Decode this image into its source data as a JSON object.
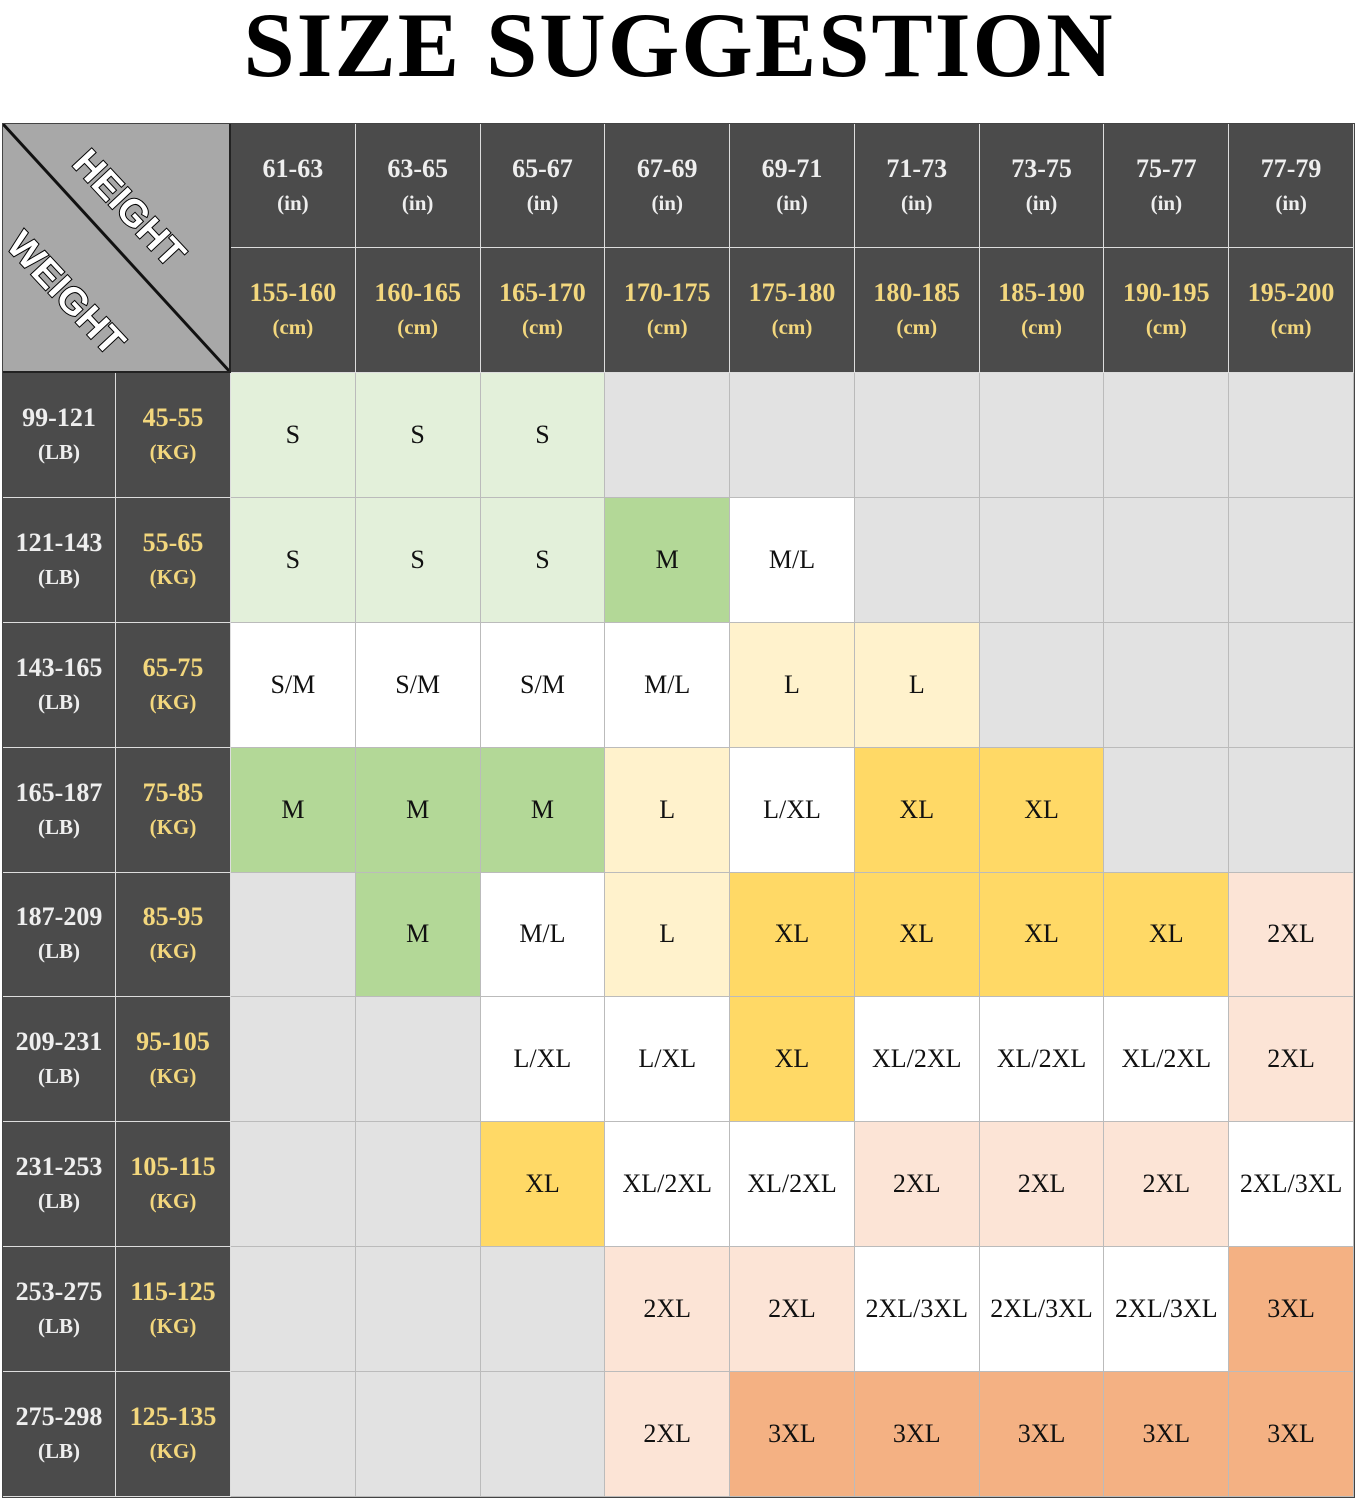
{
  "title": "SIZE SUGGESTION",
  "corner": {
    "height_label": "HEIGHT",
    "weight_label": "WEIGHT"
  },
  "colors": {
    "header": "#4b4b4b",
    "corner": "#a8a8a8",
    "gold_text": "#f3d77d",
    "lg": "#e3f0da",
    "g": "#b3d897",
    "gr": "#e2e2e2",
    "w": "#ffffff",
    "ly": "#fff2cc",
    "y": "#ffd966",
    "p": "#fce4d6",
    "o": "#f4b183"
  },
  "height_in": [
    "61-63",
    "63-65",
    "65-67",
    "67-69",
    "69-71",
    "71-73",
    "73-75",
    "75-77",
    "77-79"
  ],
  "height_in_unit": "(in)",
  "height_cm": [
    "155-160",
    "160-165",
    "165-170",
    "170-175",
    "175-180",
    "180-185",
    "185-190",
    "190-195",
    "195-200"
  ],
  "height_cm_unit": "(cm)",
  "weight_lb_unit": "(LB)",
  "weight_kg_unit": "(KG)",
  "rows": [
    {
      "lb": "99-121",
      "kg": "45-55",
      "cells": [
        [
          "S",
          "lg"
        ],
        [
          "S",
          "lg"
        ],
        [
          "S",
          "lg"
        ],
        [
          "",
          "gr"
        ],
        [
          "",
          "gr"
        ],
        [
          "",
          "gr"
        ],
        [
          "",
          "gr"
        ],
        [
          "",
          "gr"
        ],
        [
          "",
          "gr"
        ]
      ]
    },
    {
      "lb": "121-143",
      "kg": "55-65",
      "cells": [
        [
          "S",
          "lg"
        ],
        [
          "S",
          "lg"
        ],
        [
          "S",
          "lg"
        ],
        [
          "M",
          "g"
        ],
        [
          "M/L",
          "w"
        ],
        [
          "",
          "gr"
        ],
        [
          "",
          "gr"
        ],
        [
          "",
          "gr"
        ],
        [
          "",
          "gr"
        ]
      ]
    },
    {
      "lb": "143-165",
      "kg": "65-75",
      "cells": [
        [
          "S/M",
          "w"
        ],
        [
          "S/M",
          "w"
        ],
        [
          "S/M",
          "w"
        ],
        [
          "M/L",
          "w"
        ],
        [
          "L",
          "ly"
        ],
        [
          "L",
          "ly"
        ],
        [
          "",
          "gr"
        ],
        [
          "",
          "gr"
        ],
        [
          "",
          "gr"
        ]
      ]
    },
    {
      "lb": "165-187",
      "kg": "75-85",
      "cells": [
        [
          "M",
          "g"
        ],
        [
          "M",
          "g"
        ],
        [
          "M",
          "g"
        ],
        [
          "L",
          "ly"
        ],
        [
          "L/XL",
          "w"
        ],
        [
          "XL",
          "y"
        ],
        [
          "XL",
          "y"
        ],
        [
          "",
          "gr"
        ],
        [
          "",
          "gr"
        ]
      ]
    },
    {
      "lb": "187-209",
      "kg": "85-95",
      "cells": [
        [
          "",
          "gr"
        ],
        [
          "M",
          "g"
        ],
        [
          "M/L",
          "w"
        ],
        [
          "L",
          "ly"
        ],
        [
          "XL",
          "y"
        ],
        [
          "XL",
          "y"
        ],
        [
          "XL",
          "y"
        ],
        [
          "XL",
          "y"
        ],
        [
          "2XL",
          "p"
        ]
      ]
    },
    {
      "lb": "209-231",
      "kg": "95-105",
      "cells": [
        [
          "",
          "gr"
        ],
        [
          "",
          "gr"
        ],
        [
          "L/XL",
          "w"
        ],
        [
          "L/XL",
          "w"
        ],
        [
          "XL",
          "y"
        ],
        [
          "XL/2XL",
          "w"
        ],
        [
          "XL/2XL",
          "w"
        ],
        [
          "XL/2XL",
          "w"
        ],
        [
          "2XL",
          "p"
        ]
      ]
    },
    {
      "lb": "231-253",
      "kg": "105-115",
      "cells": [
        [
          "",
          "gr"
        ],
        [
          "",
          "gr"
        ],
        [
          "XL",
          "y"
        ],
        [
          "XL/2XL",
          "w"
        ],
        [
          "XL/2XL",
          "w"
        ],
        [
          "2XL",
          "p"
        ],
        [
          "2XL",
          "p"
        ],
        [
          "2XL",
          "p"
        ],
        [
          "2XL/3XL",
          "w"
        ]
      ]
    },
    {
      "lb": "253-275",
      "kg": "115-125",
      "cells": [
        [
          "",
          "gr"
        ],
        [
          "",
          "gr"
        ],
        [
          "",
          "gr"
        ],
        [
          "2XL",
          "p"
        ],
        [
          "2XL",
          "p"
        ],
        [
          "2XL/3XL",
          "w"
        ],
        [
          "2XL/3XL",
          "w"
        ],
        [
          "2XL/3XL",
          "w"
        ],
        [
          "3XL",
          "o"
        ]
      ]
    },
    {
      "lb": "275-298",
      "kg": "125-135",
      "cells": [
        [
          "",
          "gr"
        ],
        [
          "",
          "gr"
        ],
        [
          "",
          "gr"
        ],
        [
          "2XL",
          "p"
        ],
        [
          "3XL",
          "o"
        ],
        [
          "3XL",
          "o"
        ],
        [
          "3XL",
          "o"
        ],
        [
          "3XL",
          "o"
        ],
        [
          "3XL",
          "o"
        ]
      ]
    }
  ]
}
